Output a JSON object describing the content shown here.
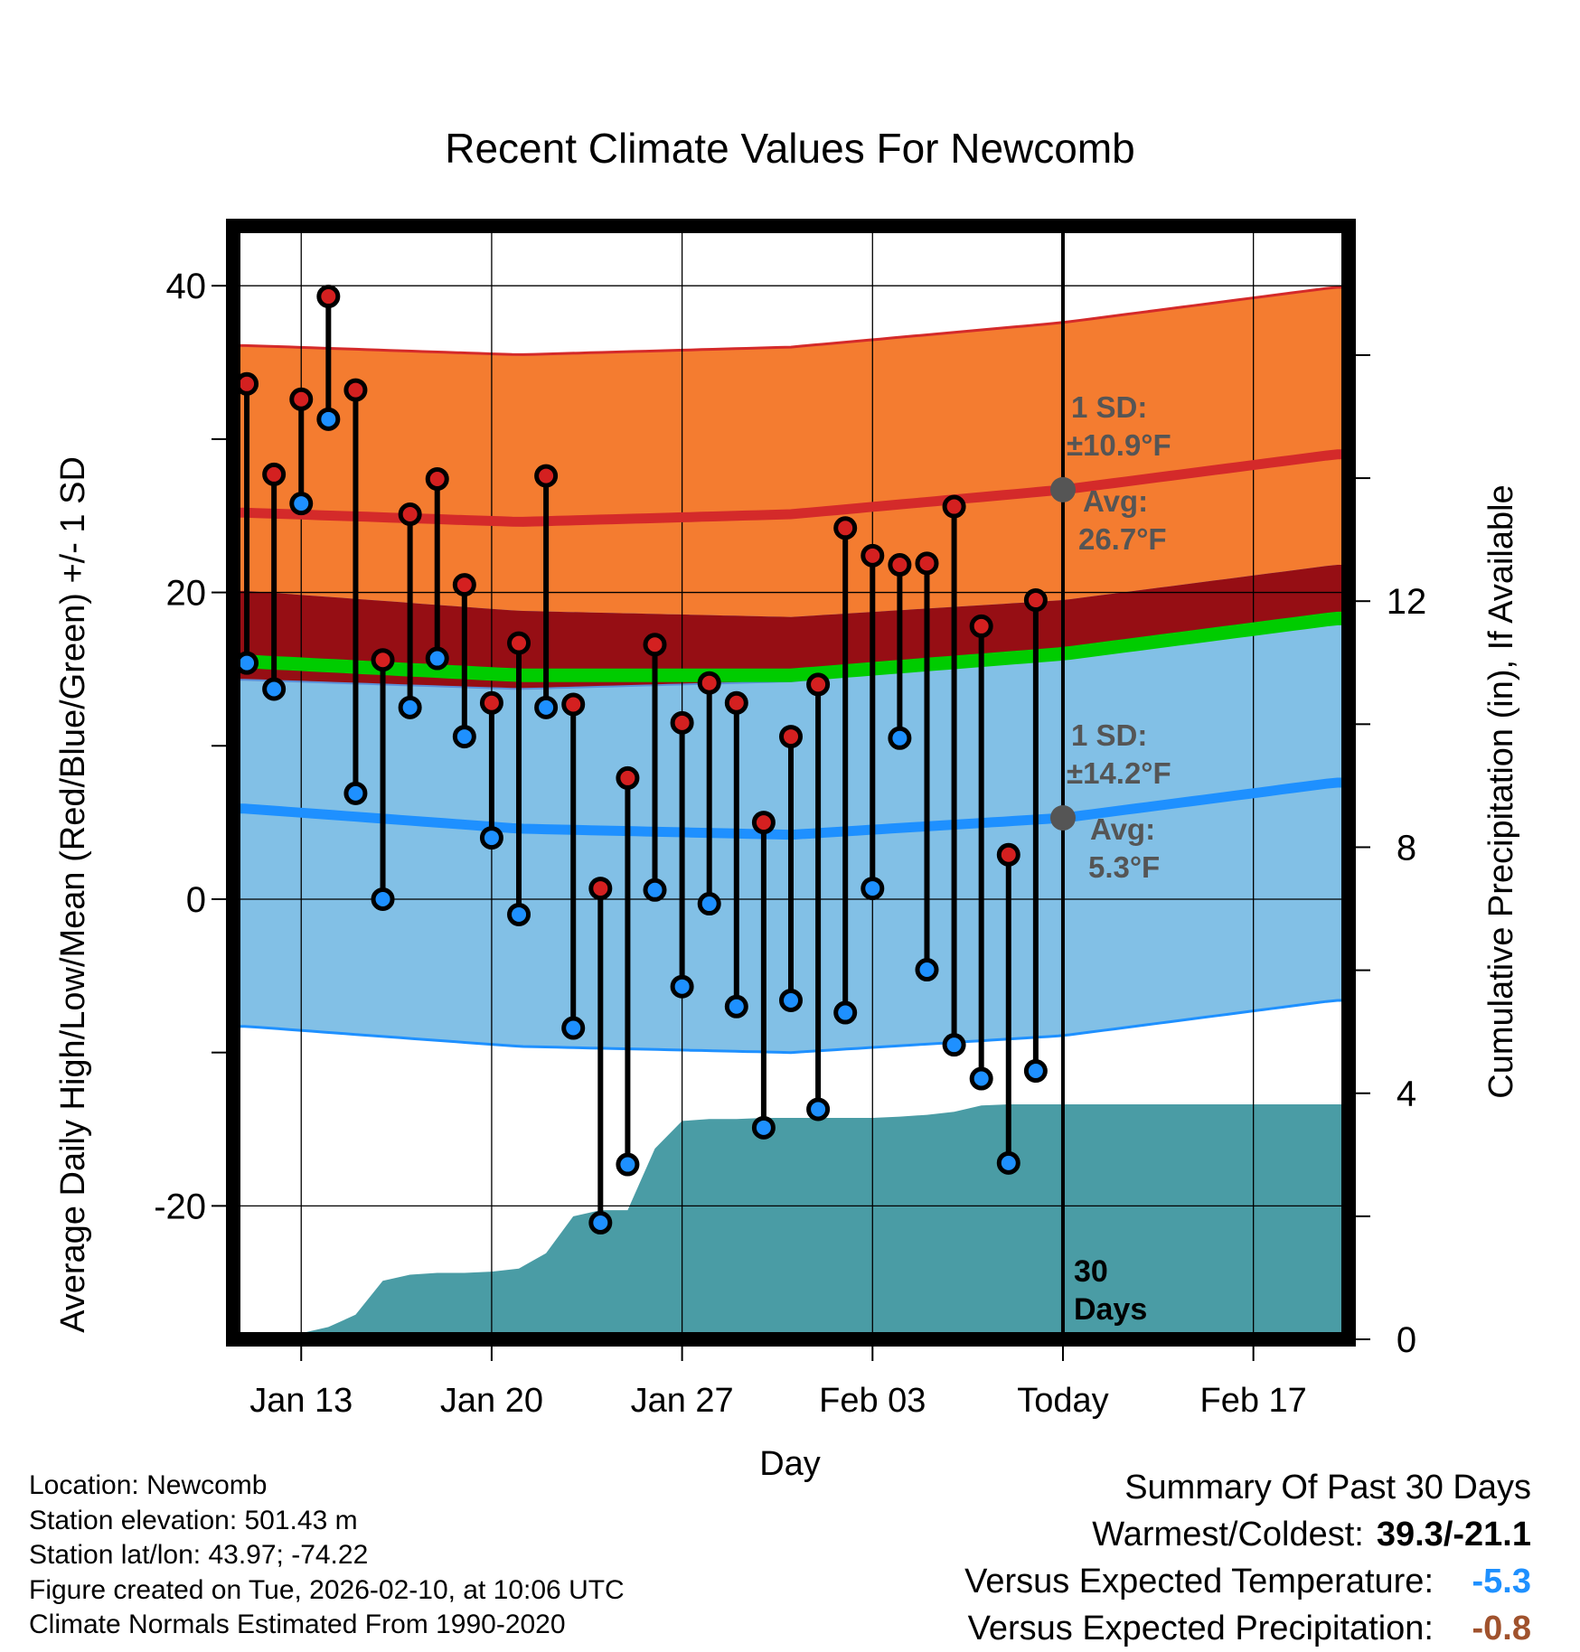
{
  "chart_data": {
    "type": "line",
    "title": "Recent Climate Values For Newcomb",
    "xlabel": "Day",
    "ylabel_left": "Average Daily High/Low/Mean (Red/Blue/Green) +/- 1 SD",
    "ylabel_right": "Cumulative Precipitation (in), If Available",
    "yticks_left": [
      "40",
      "20",
      "0",
      "-20"
    ],
    "yticks_right": [
      "12",
      "8",
      "4",
      "0"
    ],
    "ylim_left": [
      -28.7,
      43.9
    ],
    "ylim_right": [
      0,
      18.1
    ],
    "xlim_days": [
      -0.5,
      40.5
    ],
    "x_ticks": [
      {
        "day": 2,
        "label": "Jan 13"
      },
      {
        "day": 9,
        "label": "Jan 20"
      },
      {
        "day": 16,
        "label": "Jan 27"
      },
      {
        "day": 23,
        "label": "Feb 03"
      },
      {
        "day": 30,
        "label": "Today"
      },
      {
        "day": 37,
        "label": "Feb 17"
      }
    ],
    "today_day": 30,
    "days": [
      0,
      1,
      2,
      3,
      4,
      5,
      6,
      7,
      8,
      9,
      10,
      11,
      12,
      13,
      14,
      15,
      16,
      17,
      18,
      19,
      20,
      21,
      22,
      23,
      24,
      25,
      26,
      27,
      28,
      29
    ],
    "daily_high": [
      33.6,
      27.7,
      32.6,
      39.3,
      33.2,
      15.6,
      25.1,
      27.4,
      20.5,
      12.8,
      16.7,
      27.6,
      12.7,
      0.7,
      7.9,
      16.6,
      11.5,
      14.1,
      12.8,
      5.0,
      10.6,
      14.0,
      24.2,
      22.4,
      21.8,
      21.9,
      25.6,
      17.8,
      2.9,
      19.5
    ],
    "daily_low": [
      15.4,
      13.7,
      25.8,
      31.3,
      6.9,
      0.0,
      12.5,
      15.7,
      10.6,
      4.0,
      -1.0,
      12.5,
      -8.4,
      -21.1,
      -17.3,
      0.6,
      -5.7,
      -0.3,
      -7.0,
      -14.9,
      -6.6,
      -13.7,
      -7.4,
      0.7,
      10.5,
      -4.6,
      -9.5,
      -11.7,
      -17.2,
      -11.2
    ],
    "normal_days": [
      0,
      10,
      20,
      30,
      40
    ],
    "normal_high_avg": [
      25.2,
      24.6,
      25.1,
      26.7,
      29.0
    ],
    "normal_high_sd": 10.9,
    "normal_low_avg": [
      5.9,
      4.6,
      4.2,
      5.3,
      7.6
    ],
    "normal_low_sd": 14.2,
    "normal_mean_avg": [
      15.5,
      14.6,
      14.6,
      16.0,
      18.3
    ],
    "precip_days": [
      0,
      1,
      2,
      3,
      4,
      5,
      6,
      7,
      8,
      9,
      10,
      11,
      12,
      13,
      14,
      15,
      16,
      17,
      18,
      19,
      20,
      21,
      22,
      23,
      24,
      25,
      26,
      27,
      28,
      29,
      30,
      40
    ],
    "precip_cum": [
      0.0,
      0.05,
      0.1,
      0.2,
      0.4,
      0.95,
      1.05,
      1.08,
      1.08,
      1.1,
      1.15,
      1.4,
      2.0,
      2.1,
      2.1,
      3.1,
      3.55,
      3.58,
      3.58,
      3.6,
      3.6,
      3.6,
      3.6,
      3.6,
      3.62,
      3.65,
      3.7,
      3.8,
      3.82,
      3.82,
      3.82,
      3.82
    ],
    "annotations": {
      "high_sd_label": "1 SD:",
      "high_sd_value": "±10.9°F",
      "high_avg_label": "Avg:",
      "high_avg_value": "26.7°F",
      "low_sd_label": "1 SD:",
      "low_sd_value": "±14.2°F",
      "low_avg_label": "Avg:",
      "low_avg_value": "5.3°F",
      "window_number": "30",
      "window_unit": "Days"
    },
    "colors": {
      "high_band": "#f47c30",
      "high_line": "#d42a2a",
      "overlap_band": "#960e14",
      "low_band": "#82c0e6",
      "low_line": "#1e90ff",
      "mean_line": "#00cc00",
      "precip": "#4a9ca5",
      "high_dot": "#d42020",
      "low_dot": "#1e90ff",
      "annotation": "#555555"
    }
  },
  "footer": {
    "location": "Location: Newcomb",
    "elevation": "Station elevation: 501.43 m",
    "latlon": "Station lat/lon: 43.97; -74.22",
    "created": "Figure created on Tue, 2026-02-10, at 10:06 UTC",
    "normals": "Climate Normals Estimated From 1990-2020"
  },
  "summary": {
    "title": "Summary Of Past 30 Days",
    "warm_cold_label": "Warmest/Coldest:",
    "warm_cold_value": "39.3/-21.1",
    "temp_label": "Versus Expected Temperature:",
    "temp_value": "-5.3",
    "precip_label": "Versus Expected Precipitation:",
    "precip_value": "-0.8"
  }
}
